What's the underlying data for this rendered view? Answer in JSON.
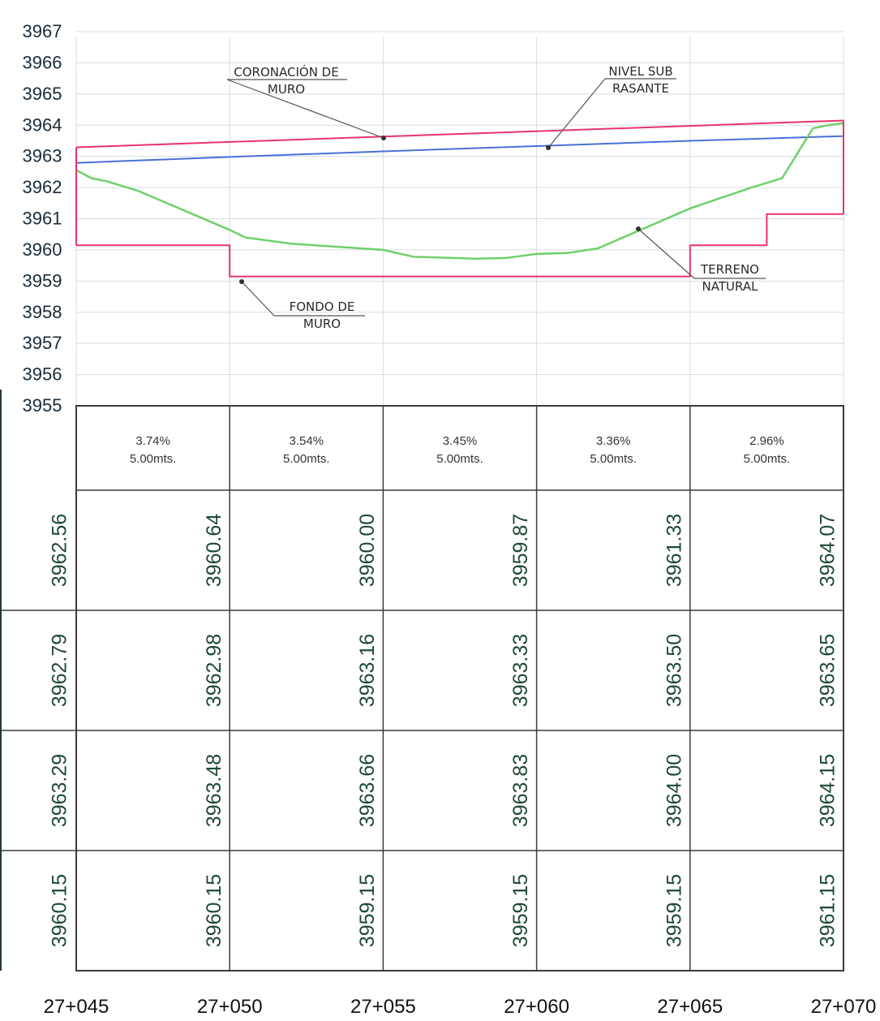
{
  "chart_data": {
    "type": "line",
    "ylim": [
      3955,
      3967
    ],
    "y_ticks": [
      "3967",
      "3966",
      "3965",
      "3964",
      "3963",
      "3962",
      "3961",
      "3960",
      "3959",
      "3958",
      "3957",
      "3956",
      "3955"
    ],
    "grid": true,
    "stations": [
      "27+045",
      "27+050",
      "27+055",
      "27+060",
      "27+065",
      "27+070"
    ],
    "series": [
      {
        "key": "coronacion",
        "color": "#e8336a",
        "x": [
          0,
          25
        ],
        "y": [
          3963.29,
          3964.15
        ]
      },
      {
        "key": "subrasante",
        "color": "#4a6fd8",
        "x": [
          0,
          5,
          10,
          15,
          20,
          25
        ],
        "y": [
          3962.79,
          3962.98,
          3963.16,
          3963.33,
          3963.5,
          3963.65
        ]
      },
      {
        "key": "terreno",
        "color": "#6fd06a",
        "x": [
          0,
          0.5,
          1,
          2,
          5,
          5.5,
          7,
          10,
          11,
          12,
          13,
          14,
          15,
          16,
          17,
          20,
          22,
          23,
          24,
          24.5,
          25
        ],
        "y": [
          3962.56,
          3962.3,
          3962.2,
          3961.9,
          3960.64,
          3960.4,
          3960.2,
          3960.0,
          3959.78,
          3959.75,
          3959.72,
          3959.74,
          3959.87,
          3959.9,
          3960.05,
          3961.33,
          3962.0,
          3962.3,
          3963.9,
          3964.0,
          3964.07
        ]
      },
      {
        "key": "fondo",
        "color": "#e8336a",
        "x": [
          0,
          5,
          5,
          20,
          20,
          22.5,
          22.5,
          25
        ],
        "y": [
          3960.15,
          3960.15,
          3959.15,
          3959.15,
          3960.15,
          3960.15,
          3961.15,
          3961.15
        ]
      }
    ],
    "annotations": [
      {
        "key": "coronacion",
        "lines": [
          "CORONACIÓN DE",
          "MURO"
        ]
      },
      {
        "key": "subrasante",
        "lines": [
          "NIVEL SUB",
          "RASANTE"
        ]
      },
      {
        "key": "fondo",
        "lines": [
          "FONDO DE",
          "MURO"
        ]
      },
      {
        "key": "terreno",
        "lines": [
          "TERRENO",
          "NATURAL"
        ]
      }
    ],
    "segments": [
      {
        "slope": "3.74%",
        "length": "5.00mts."
      },
      {
        "slope": "3.54%",
        "length": "5.00mts."
      },
      {
        "slope": "3.45%",
        "length": "5.00mts."
      },
      {
        "slope": "3.36%",
        "length": "5.00mts."
      },
      {
        "slope": "2.96%",
        "length": "5.00mts."
      }
    ],
    "table_rows": [
      [
        "3962.56",
        "3960.64",
        "3960.00",
        "3959.87",
        "3961.33",
        "3964.07"
      ],
      [
        "3962.79",
        "3962.98",
        "3963.16",
        "3963.33",
        "3963.50",
        "3963.65"
      ],
      [
        "3963.29",
        "3963.48",
        "3963.66",
        "3963.83",
        "3964.00",
        "3964.15"
      ],
      [
        "3960.15",
        "3960.15",
        "3959.15",
        "3959.15",
        "3959.15",
        "3961.15"
      ]
    ]
  }
}
